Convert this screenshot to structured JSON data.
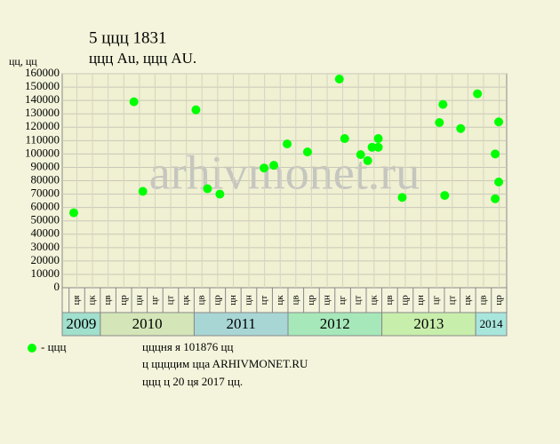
{
  "chart_data": {
    "type": "scatter",
    "title": "5 ццц 1831",
    "subtitle": "ццц  Au, ццц  AU.",
    "y_label": "цц, цц",
    "legend_label": "- ццц",
    "footer": [
      "цццня я 101876 цц",
      "ц ццццим ццa ARHIVMONET.RU",
      "ццц ц 20 ця 2017 цц."
    ],
    "watermark": "arhivmonet.ru",
    "color": "#00ff00",
    "grid": true,
    "xlim": [
      2009.594,
      2014.33
    ],
    "ylim": [
      0,
      160000
    ],
    "yticks": [
      0,
      10000,
      20000,
      30000,
      40000,
      50000,
      60000,
      70000,
      80000,
      90000,
      100000,
      110000,
      120000,
      130000,
      140000,
      150000,
      160000
    ],
    "xticks": [
      {
        "value": 2009.75,
        "label": "ця"
      },
      {
        "value": 2009.917,
        "label": "цк"
      },
      {
        "value": 2010.083,
        "label": "цв"
      },
      {
        "value": 2010.25,
        "label": "цр"
      },
      {
        "value": 2010.417,
        "label": "цн"
      },
      {
        "value": 2010.583,
        "label": "цг"
      },
      {
        "value": 2010.75,
        "label": "цт"
      },
      {
        "value": 2010.917,
        "label": "цк"
      },
      {
        "value": 2011.083,
        "label": "цв"
      },
      {
        "value": 2011.25,
        "label": "цр"
      },
      {
        "value": 2011.417,
        "label": "цн"
      },
      {
        "value": 2011.583,
        "label": "цн"
      },
      {
        "value": 2011.75,
        "label": "цт"
      },
      {
        "value": 2011.917,
        "label": "цк"
      },
      {
        "value": 2012.083,
        "label": "цв"
      },
      {
        "value": 2012.25,
        "label": "цр"
      },
      {
        "value": 2012.417,
        "label": "цн"
      },
      {
        "value": 2012.583,
        "label": "цг"
      },
      {
        "value": 2012.75,
        "label": "цт"
      },
      {
        "value": 2012.917,
        "label": "цк"
      },
      {
        "value": 2013.083,
        "label": "цв"
      },
      {
        "value": 2013.25,
        "label": "цр"
      },
      {
        "value": 2013.417,
        "label": "цн"
      },
      {
        "value": 2013.583,
        "label": "цг"
      },
      {
        "value": 2013.75,
        "label": "цт"
      },
      {
        "value": 2013.917,
        "label": "цк"
      },
      {
        "value": 2014.083,
        "label": "цв"
      },
      {
        "value": 2014.25,
        "label": "цр"
      }
    ],
    "year_bands": [
      {
        "label": "2009",
        "start": 2009.594,
        "end": 2010,
        "color": "#a0e0cc"
      },
      {
        "label": "2010",
        "start": 2010,
        "end": 2011,
        "color": "#d4e6b8"
      },
      {
        "label": "2011",
        "start": 2011,
        "end": 2012,
        "color": "#a8d6d4"
      },
      {
        "label": "2012",
        "start": 2012,
        "end": 2013,
        "color": "#a6e8ba"
      },
      {
        "label": "2013",
        "start": 2013,
        "end": 2014,
        "color": "#c8eeac"
      },
      {
        "label": "2014",
        "start": 2014,
        "end": 2014.33,
        "color": "#a8e6dc"
      }
    ],
    "x": [
      2009.717,
      2010.358,
      2010.453,
      2011.019,
      2011.142,
      2011.274,
      2011.745,
      2011.849,
      2011.991,
      2012.208,
      2012.547,
      2012.604,
      2012.774,
      2012.849,
      2012.896,
      2012.962,
      2012.962,
      2013.217,
      2013.613,
      2013.651,
      2013.67,
      2013.84,
      2014.019,
      2014.208,
      2014.245,
      2014.208,
      2014.245
    ],
    "values": [
      56000,
      139000,
      72000,
      133000,
      74000,
      70000,
      89500,
      91500,
      107500,
      101500,
      156000,
      111500,
      99500,
      95000,
      105000,
      111500,
      105000,
      67500,
      123500,
      137000,
      69000,
      119000,
      145000,
      100000,
      124000,
      66500,
      79000
    ]
  }
}
